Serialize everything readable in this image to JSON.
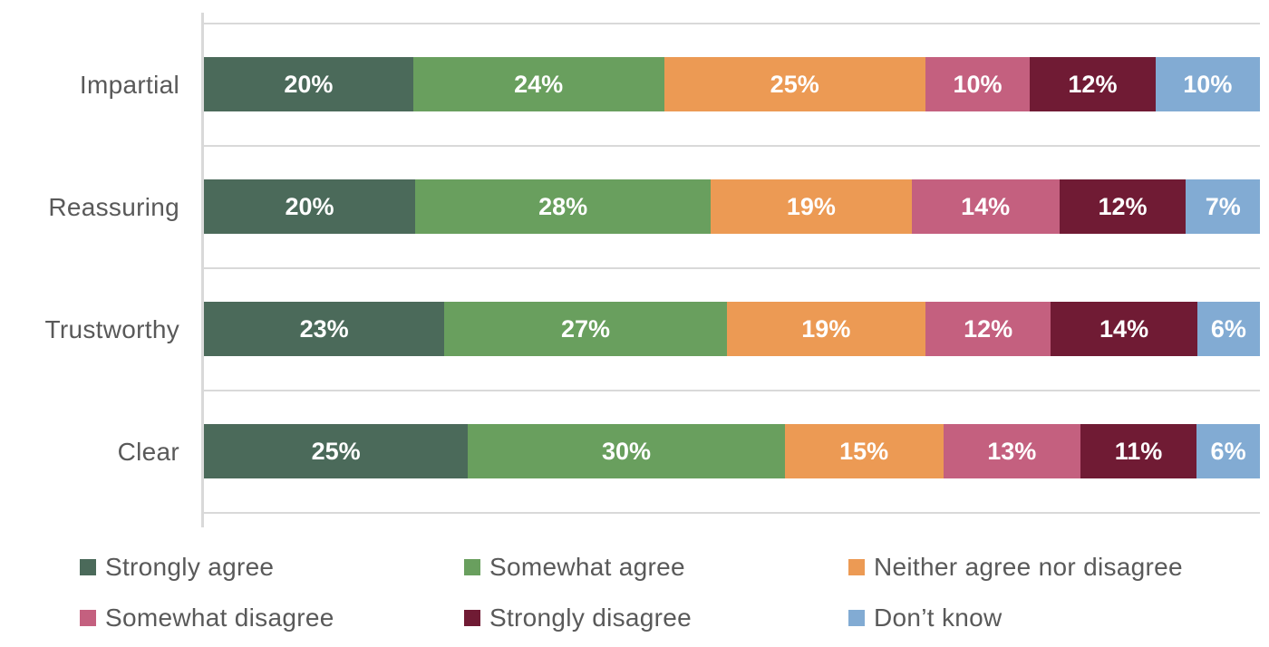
{
  "chart_data": {
    "type": "bar",
    "orientation": "horizontal",
    "stacked": "100%",
    "title": "",
    "categories": [
      "Impartial",
      "Reassuring",
      "Trustworthy",
      "Clear"
    ],
    "series": [
      {
        "name": "Strongly agree",
        "color": "#4b6a5a",
        "values": [
          20,
          20,
          23,
          25
        ]
      },
      {
        "name": "Somewhat agree",
        "color": "#699f5e",
        "values": [
          24,
          28,
          27,
          30
        ]
      },
      {
        "name": "Neither agree nor disagree",
        "color": "#ec9a54",
        "values": [
          25,
          19,
          19,
          15
        ]
      },
      {
        "name": "Somewhat disagree",
        "color": "#c4607f",
        "values": [
          10,
          14,
          12,
          13
        ]
      },
      {
        "name": "Strongly disagree",
        "color": "#701b34",
        "values": [
          12,
          12,
          14,
          11
        ]
      },
      {
        "name": "Don’t know",
        "color": "#82abd3",
        "values": [
          10,
          7,
          6,
          6
        ]
      }
    ],
    "data_label_format": "{value}%",
    "data_label_color": "#ffffff",
    "text_color": "#595959",
    "axis_line_color": "#d9d9d9",
    "grid": {
      "row_separators": true
    },
    "legend_position": "bottom",
    "legend_columns": 3,
    "xlim": [
      0,
      100
    ],
    "axes_tick_labels_visible": false
  }
}
